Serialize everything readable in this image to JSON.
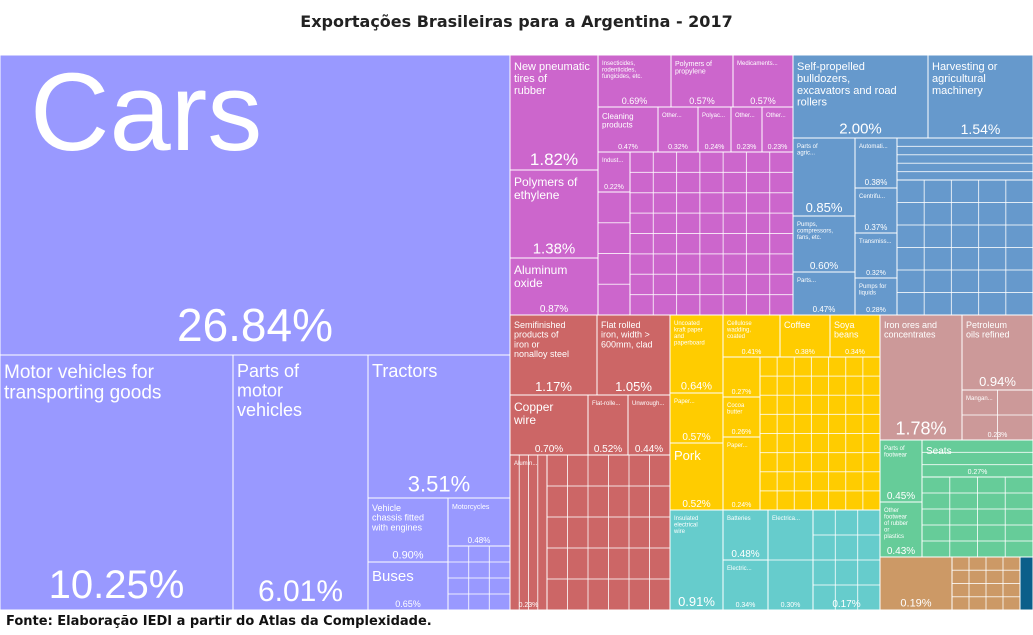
{
  "title": "Exportações Brasileiras para a Argentina - 2017",
  "source": "Fonte: Elaboração IEDI a partir do Atlas da Complexidade.",
  "colors": {
    "vehicles": "#9999ff",
    "chemicals": "#cc66cc",
    "machinery": "#6699cc",
    "metals": "#cc6666",
    "agriculture": "#ffcc00",
    "electronics": "#66cccc",
    "minerals": "#cc9999",
    "textiles": "#66cc99",
    "other": "#cc9966",
    "misc": "#0b5f8a"
  },
  "chart_data": {
    "type": "treemap",
    "title": "Exportações Brasileiras para a Argentina - 2017",
    "unit": "% of total exports",
    "items": [
      {
        "label": "Cars",
        "value": 26.84,
        "group": "vehicles"
      },
      {
        "label": "Motor vehicles for transporting goods",
        "value": 10.25,
        "group": "vehicles"
      },
      {
        "label": "Parts of motor vehicles",
        "value": 6.01,
        "group": "vehicles"
      },
      {
        "label": "Tractors",
        "value": 3.51,
        "group": "vehicles"
      },
      {
        "label": "Vehicle chassis fitted with engines",
        "value": 0.9,
        "group": "vehicles"
      },
      {
        "label": "Buses",
        "value": 0.65,
        "group": "vehicles"
      },
      {
        "label": "Motorcycles",
        "value": 0.48,
        "group": "vehicles"
      },
      {
        "label": "New pneumatic tires of rubber",
        "value": 1.82,
        "group": "chemicals"
      },
      {
        "label": "Polymers of ethylene",
        "value": 1.38,
        "group": "chemicals"
      },
      {
        "label": "Aluminum oxide",
        "value": 0.87,
        "group": "chemicals"
      },
      {
        "label": "Insecticides, rodenticides, fungicides, etc.",
        "value": 0.69,
        "group": "chemicals"
      },
      {
        "label": "Polymers of propylene",
        "value": 0.57,
        "group": "chemicals"
      },
      {
        "label": "Medicaments...",
        "value": 0.57,
        "group": "chemicals"
      },
      {
        "label": "Cleaning products",
        "value": 0.47,
        "group": "chemicals"
      },
      {
        "label": "Self-propelled bulldozers, excavators and road rollers",
        "value": 2.0,
        "group": "machinery"
      },
      {
        "label": "Harvesting or agricultural machinery",
        "value": 1.54,
        "group": "machinery"
      },
      {
        "label": "Pumps, compressors, fans, etc.",
        "value": 0.6,
        "group": "machinery"
      },
      {
        "label": "Pumps for liquids",
        "value": 0.28,
        "group": "machinery"
      },
      {
        "label": "Semifinished products of iron or nonalloy steel",
        "value": 1.17,
        "group": "metals"
      },
      {
        "label": "Flat rolled iron, width > 600mm, clad",
        "value": 1.05,
        "group": "metals"
      },
      {
        "label": "Copper wire",
        "value": 0.7,
        "group": "metals"
      },
      {
        "label": "Uncoated kraft paper and paperboard",
        "value": 0.64,
        "group": "agriculture"
      },
      {
        "label": "Pork",
        "value": 0.52,
        "group": "agriculture"
      },
      {
        "label": "Cellulose wadding, coated",
        "value": 0.41,
        "group": "agriculture"
      },
      {
        "label": "Coffee",
        "value": 0.38,
        "group": "agriculture"
      },
      {
        "label": "Soya beans",
        "value": 0.34,
        "group": "agriculture"
      },
      {
        "label": "Cocoa butter",
        "value": 0.26,
        "group": "agriculture"
      },
      {
        "label": "Insulated electrical wire",
        "value": 0.91,
        "group": "electronics"
      },
      {
        "label": "Iron ores and concentrates",
        "value": 1.78,
        "group": "minerals"
      },
      {
        "label": "Petroleum oils refined",
        "value": 0.94,
        "group": "minerals"
      },
      {
        "label": "Parts of footwear",
        "value": 0.45,
        "group": "textiles"
      },
      {
        "label": "Other footwear of rubber or plastics",
        "value": 0.43,
        "group": "textiles"
      },
      {
        "label": "Seats",
        "value": 0.27,
        "group": "other"
      }
    ]
  },
  "tiles": [
    {
      "r": [
        0,
        55,
        510,
        300
      ],
      "g": "vehicles",
      "label": "Cars",
      "pct": "26.84%",
      "ls": 110,
      "ps": 46,
      "lstyle": "big"
    },
    {
      "r": [
        0,
        355,
        233,
        255
      ],
      "g": "vehicles",
      "label": "Motor vehicles for transporting goods",
      "pct": "10.25%",
      "ls": 19,
      "ps": 40
    },
    {
      "r": [
        233,
        355,
        135,
        255
      ],
      "g": "vehicles",
      "label": "Parts of motor vehicles",
      "pct": "6.01%",
      "ls": 18,
      "ps": 30
    },
    {
      "r": [
        368,
        355,
        142,
        143
      ],
      "g": "vehicles",
      "label": "Tractors",
      "pct": "3.51%",
      "ls": 18,
      "ps": 22
    },
    {
      "r": [
        368,
        498,
        80,
        64
      ],
      "g": "vehicles",
      "label": "Vehicle chassis fitted with engines",
      "pct": "0.90%",
      "ls": 9,
      "ps": 11
    },
    {
      "r": [
        368,
        562,
        80,
        48
      ],
      "g": "vehicles",
      "label": "Buses",
      "pct": "0.65%",
      "ls": 15,
      "ps": 9
    },
    {
      "r": [
        448,
        498,
        62,
        48
      ],
      "g": "vehicles",
      "label": "Motorcycles",
      "pct": "0.48%",
      "ls": 7,
      "ps": 8
    },
    {
      "r": [
        448,
        546,
        62,
        64
      ],
      "g": "vehicles",
      "label": "",
      "pct": "",
      "ls": 7,
      "ps": 7,
      "sub": [
        3,
        4
      ]
    },
    {
      "r": [
        510,
        55,
        88,
        115
      ],
      "g": "chemicals",
      "label": "New pneumatic tires of rubber",
      "pct": "1.82%",
      "ls": 11,
      "ps": 17
    },
    {
      "r": [
        510,
        170,
        88,
        88
      ],
      "g": "chemicals",
      "label": "Polymers of ethylene",
      "pct": "1.38%",
      "ls": 12,
      "ps": 15
    },
    {
      "r": [
        510,
        258,
        88,
        57
      ],
      "g": "chemicals",
      "label": "Aluminum oxide",
      "pct": "0.87%",
      "ls": 12,
      "ps": 10
    },
    {
      "r": [
        598,
        55,
        73,
        52
      ],
      "g": "chemicals",
      "label": "Insecticides, rodenticides, fungicides, etc.",
      "pct": "0.69%",
      "ls": 6,
      "ps": 9
    },
    {
      "r": [
        671,
        55,
        62,
        52
      ],
      "g": "chemicals",
      "label": "Polymers of propylene",
      "pct": "0.57%",
      "ls": 7,
      "ps": 9
    },
    {
      "r": [
        733,
        55,
        60,
        52
      ],
      "g": "chemicals",
      "label": "Medicaments...",
      "pct": "0.57%",
      "ls": 6,
      "ps": 9
    },
    {
      "r": [
        598,
        107,
        60,
        45
      ],
      "g": "chemicals",
      "label": "Cleaning products",
      "pct": "0.47%",
      "ls": 8,
      "ps": 7
    },
    {
      "r": [
        658,
        107,
        40,
        45
      ],
      "g": "chemicals",
      "label": "Other...",
      "pct": "0.32%",
      "ls": 6,
      "ps": 7
    },
    {
      "r": [
        698,
        107,
        33,
        45
      ],
      "g": "chemicals",
      "label": "Polyac...",
      "pct": "0.24%",
      "ls": 6,
      "ps": 7
    },
    {
      "r": [
        731,
        107,
        31,
        45
      ],
      "g": "chemicals",
      "label": "Other...",
      "pct": "0.23%",
      "ls": 6,
      "ps": 7
    },
    {
      "r": [
        762,
        107,
        31,
        45
      ],
      "g": "chemicals",
      "label": "Other...",
      "pct": "0.23%",
      "ls": 6,
      "ps": 7
    },
    {
      "r": [
        598,
        152,
        32,
        40
      ],
      "g": "chemicals",
      "label": "Indust...",
      "pct": "0.22%",
      "ls": 6,
      "ps": 7
    },
    {
      "r": [
        630,
        152,
        163,
        163
      ],
      "g": "chemicals",
      "label": "",
      "pct": "",
      "ls": 6,
      "ps": 6,
      "sub": [
        7,
        8
      ]
    },
    {
      "r": [
        598,
        192,
        32,
        123
      ],
      "g": "chemicals",
      "label": "",
      "pct": "",
      "ls": 6,
      "ps": 6,
      "sub": [
        1,
        4
      ]
    },
    {
      "r": [
        793,
        55,
        135,
        83
      ],
      "g": "machinery",
      "label": "Self-propelled bulldozers, excavators and road rollers",
      "pct": "2.00%",
      "ls": 11,
      "ps": 15
    },
    {
      "r": [
        928,
        55,
        105,
        83
      ],
      "g": "machinery",
      "label": "Harvesting or agricultural machinery",
      "pct": "1.54%",
      "ls": 11,
      "ps": 14
    },
    {
      "r": [
        793,
        138,
        62,
        78
      ],
      "g": "machinery",
      "label": "Parts of agric...",
      "pct": "0.85%",
      "ls": 6,
      "ps": 13
    },
    {
      "r": [
        793,
        216,
        62,
        56
      ],
      "g": "machinery",
      "label": "Pumps, compressors, fans, etc.",
      "pct": "0.60%",
      "ls": 6,
      "ps": 10
    },
    {
      "r": [
        793,
        272,
        62,
        43
      ],
      "g": "machinery",
      "label": "Parts...",
      "pct": "0.47%",
      "ls": 6,
      "ps": 8
    },
    {
      "r": [
        855,
        138,
        42,
        50
      ],
      "g": "machinery",
      "label": "Automati...",
      "pct": "0.38%",
      "ls": 6,
      "ps": 8
    },
    {
      "r": [
        855,
        188,
        42,
        45
      ],
      "g": "machinery",
      "label": "Centrifu...",
      "pct": "0.37%",
      "ls": 6,
      "ps": 8
    },
    {
      "r": [
        855,
        233,
        42,
        45
      ],
      "g": "machinery",
      "label": "Transmiss...",
      "pct": "0.32%",
      "ls": 6,
      "ps": 7
    },
    {
      "r": [
        855,
        278,
        42,
        37
      ],
      "g": "machinery",
      "label": "Pumps for liquids",
      "pct": "0.28%",
      "ls": 6,
      "ps": 7
    },
    {
      "r": [
        897,
        138,
        136,
        42
      ],
      "g": "machinery",
      "label": "",
      "pct": "",
      "ls": 6,
      "ps": 6,
      "sub": [
        1,
        5
      ]
    },
    {
      "r": [
        897,
        180,
        136,
        135
      ],
      "g": "machinery",
      "label": "",
      "pct": "",
      "ls": 6,
      "ps": 6,
      "sub": [
        5,
        6
      ]
    },
    {
      "r": [
        510,
        315,
        87,
        80
      ],
      "g": "metals",
      "label": "Semifinished products of iron or nonalloy steel",
      "pct": "1.17%",
      "ls": 9,
      "ps": 13
    },
    {
      "r": [
        597,
        315,
        73,
        80
      ],
      "g": "metals",
      "label": "Flat rolled iron, width > 600mm, clad",
      "pct": "1.05%",
      "ls": 9,
      "ps": 13
    },
    {
      "r": [
        510,
        395,
        78,
        60
      ],
      "g": "metals",
      "label": "Copper wire",
      "pct": "0.70%",
      "ls": 12,
      "ps": 10
    },
    {
      "r": [
        588,
        395,
        40,
        60
      ],
      "g": "metals",
      "label": "Flat-rolle...",
      "pct": "0.52%",
      "ls": 6,
      "ps": 10
    },
    {
      "r": [
        628,
        395,
        42,
        60
      ],
      "g": "metals",
      "label": "Unwrough...",
      "pct": "0.44%",
      "ls": 6,
      "ps": 10
    },
    {
      "r": [
        510,
        455,
        37,
        155
      ],
      "g": "metals",
      "label": "Alumin...",
      "pct": "0.23%",
      "ls": 6,
      "ps": 7,
      "sub": [
        4,
        1
      ]
    },
    {
      "r": [
        547,
        455,
        123,
        155
      ],
      "g": "metals",
      "label": "",
      "pct": "",
      "ls": 6,
      "ps": 6,
      "sub": [
        6,
        5
      ]
    },
    {
      "r": [
        670,
        315,
        53,
        78
      ],
      "g": "agriculture",
      "label": "Uncoated kraft paper and paperboard",
      "pct": "0.64%",
      "ls": 6,
      "ps": 11
    },
    {
      "r": [
        670,
        393,
        53,
        50
      ],
      "g": "agriculture",
      "label": "Paper...",
      "pct": "0.57%",
      "ls": 6,
      "ps": 10
    },
    {
      "r": [
        670,
        443,
        53,
        67
      ],
      "g": "agriculture",
      "label": "Pork",
      "pct": "0.52%",
      "ls": 13,
      "ps": 10
    },
    {
      "r": [
        723,
        315,
        57,
        42
      ],
      "g": "agriculture",
      "label": "Cellulose wadding, coated",
      "pct": "0.41%",
      "ls": 6,
      "ps": 7
    },
    {
      "r": [
        780,
        315,
        50,
        42
      ],
      "g": "agriculture",
      "label": "Coffee",
      "pct": "0.38%",
      "ls": 9,
      "ps": 7
    },
    {
      "r": [
        830,
        315,
        50,
        42
      ],
      "g": "agriculture",
      "label": "Soya beans",
      "pct": "0.34%",
      "ls": 9,
      "ps": 7
    },
    {
      "r": [
        723,
        357,
        37,
        40
      ],
      "g": "agriculture",
      "label": "",
      "pct": "0.27%",
      "ls": 6,
      "ps": 7
    },
    {
      "r": [
        723,
        397,
        37,
        40
      ],
      "g": "agriculture",
      "label": "Cocoa butter",
      "pct": "0.26%",
      "ls": 6,
      "ps": 7
    },
    {
      "r": [
        723,
        437,
        37,
        73
      ],
      "g": "agriculture",
      "label": "Paper...",
      "pct": "0.24%",
      "ls": 6,
      "ps": 7
    },
    {
      "r": [
        760,
        357,
        120,
        153
      ],
      "g": "agriculture",
      "label": "",
      "pct": "",
      "ls": 6,
      "ps": 6,
      "sub": [
        7,
        8
      ]
    },
    {
      "r": [
        670,
        510,
        53,
        100
      ],
      "g": "electronics",
      "label": "Insulated electrical wire",
      "pct": "0.91%",
      "ls": 6,
      "ps": 13
    },
    {
      "r": [
        723,
        510,
        45,
        50
      ],
      "g": "electronics",
      "label": "Batteries",
      "pct": "0.48%",
      "ls": 6,
      "ps": 10
    },
    {
      "r": [
        723,
        560,
        45,
        50
      ],
      "g": "electronics",
      "label": "Electric...",
      "pct": "0.34%",
      "ls": 6,
      "ps": 7
    },
    {
      "r": [
        768,
        510,
        45,
        100
      ],
      "g": "electronics",
      "label": "Electrica...",
      "pct": "0.30%",
      "ls": 6,
      "ps": 7,
      "sub": [
        1,
        2
      ]
    },
    {
      "r": [
        813,
        510,
        67,
        100
      ],
      "g": "electronics",
      "label": "",
      "pct": "0.17%",
      "ls": 6,
      "ps": 10,
      "sub": [
        3,
        4
      ]
    },
    {
      "r": [
        880,
        315,
        82,
        125
      ],
      "g": "minerals",
      "label": "Iron ores and concentrates",
      "pct": "1.78%",
      "ls": 9,
      "ps": 18
    },
    {
      "r": [
        962,
        315,
        71,
        75
      ],
      "g": "minerals",
      "label": "Petroleum oils refined",
      "pct": "0.94%",
      "ls": 9,
      "ps": 13
    },
    {
      "r": [
        962,
        390,
        71,
        50
      ],
      "g": "minerals",
      "label": "Mangan...",
      "pct": "0.23%",
      "ls": 6,
      "ps": 7,
      "sub": [
        2,
        2
      ]
    },
    {
      "r": [
        880,
        440,
        42,
        62
      ],
      "g": "textiles",
      "label": "Parts of footwear",
      "pct": "0.45%",
      "ls": 6,
      "ps": 10
    },
    {
      "r": [
        880,
        502,
        42,
        55
      ],
      "g": "textiles",
      "label": "Other footwear of rubber or plastics",
      "pct": "0.43%",
      "ls": 6,
      "ps": 10
    },
    {
      "r": [
        922,
        440,
        111,
        37
      ],
      "g": "textiles",
      "label": "Seats",
      "pct": "0.27%",
      "ls": 10,
      "ps": 7,
      "sub": [
        1,
        3
      ]
    },
    {
      "r": [
        922,
        477,
        111,
        80
      ],
      "g": "textiles",
      "label": "",
      "pct": "",
      "ls": 6,
      "ps": 6,
      "sub": [
        4,
        5
      ]
    },
    {
      "r": [
        880,
        557,
        72,
        53
      ],
      "g": "other",
      "label": "",
      "pct": "0.19%",
      "ls": 6,
      "ps": 11
    },
    {
      "r": [
        952,
        557,
        68,
        53
      ],
      "g": "other",
      "label": "",
      "pct": "",
      "ls": 6,
      "ps": 6,
      "sub": [
        4,
        4
      ]
    },
    {
      "r": [
        1020,
        557,
        13,
        53
      ],
      "g": "misc",
      "label": "",
      "pct": "",
      "ls": 6,
      "ps": 6
    }
  ]
}
